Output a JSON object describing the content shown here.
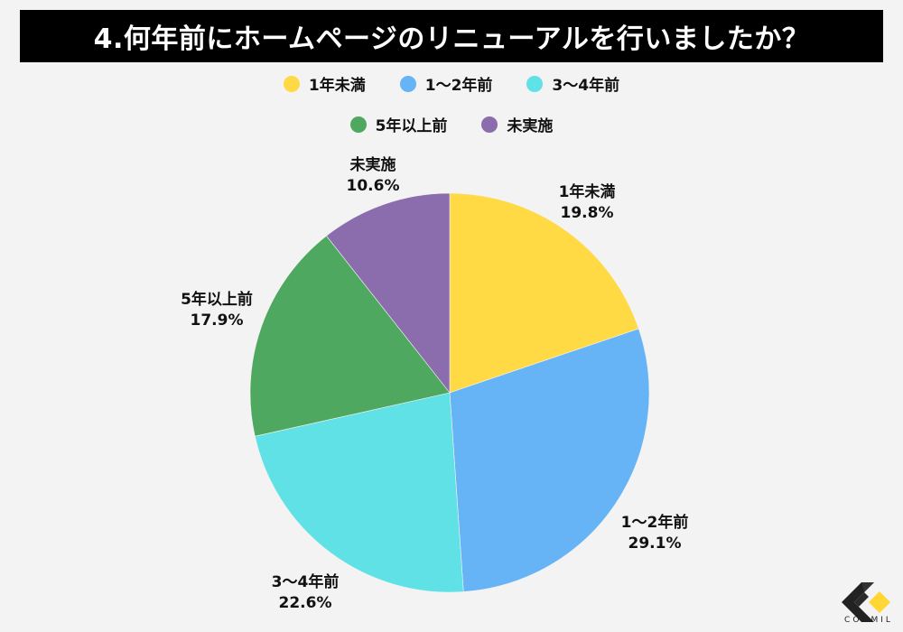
{
  "title": "4.何年前にホームページのリニューアルを行いましたか？",
  "legend": {
    "row1": [
      {
        "label": "1年未満",
        "color": "#FFDA44"
      },
      {
        "label": "1〜2年前",
        "color": "#66B4F5"
      },
      {
        "label": "3〜4年前",
        "color": "#5FE1E6"
      }
    ],
    "row2": [
      {
        "label": "5年以上前",
        "color": "#4EA85F"
      },
      {
        "label": "未実施",
        "color": "#8B6DAD"
      }
    ]
  },
  "labels": {
    "s0": {
      "name": "1年未満",
      "pct": "19.8%"
    },
    "s1": {
      "name": "1〜2年前",
      "pct": "29.1%"
    },
    "s2": {
      "name": "3〜4年前",
      "pct": "22.6%"
    },
    "s3": {
      "name": "5年以上前",
      "pct": "17.9%"
    },
    "s4": {
      "name": "未実施",
      "pct": "10.6%"
    }
  },
  "logo": {
    "text": "COOMIL"
  },
  "chart_data": {
    "type": "pie",
    "title": "4.何年前にホームページのリニューアルを行いましたか？",
    "categories": [
      "1年未満",
      "1〜2年前",
      "3〜4年前",
      "5年以上前",
      "未実施"
    ],
    "values": [
      19.8,
      29.1,
      22.6,
      17.9,
      10.6
    ],
    "unit": "%",
    "colors": [
      "#FFDA44",
      "#66B4F5",
      "#5FE1E6",
      "#4EA85F",
      "#8B6DAD"
    ],
    "start_angle": "12 o'clock",
    "direction": "clockwise",
    "legend_position": "top",
    "data_labels": true
  }
}
